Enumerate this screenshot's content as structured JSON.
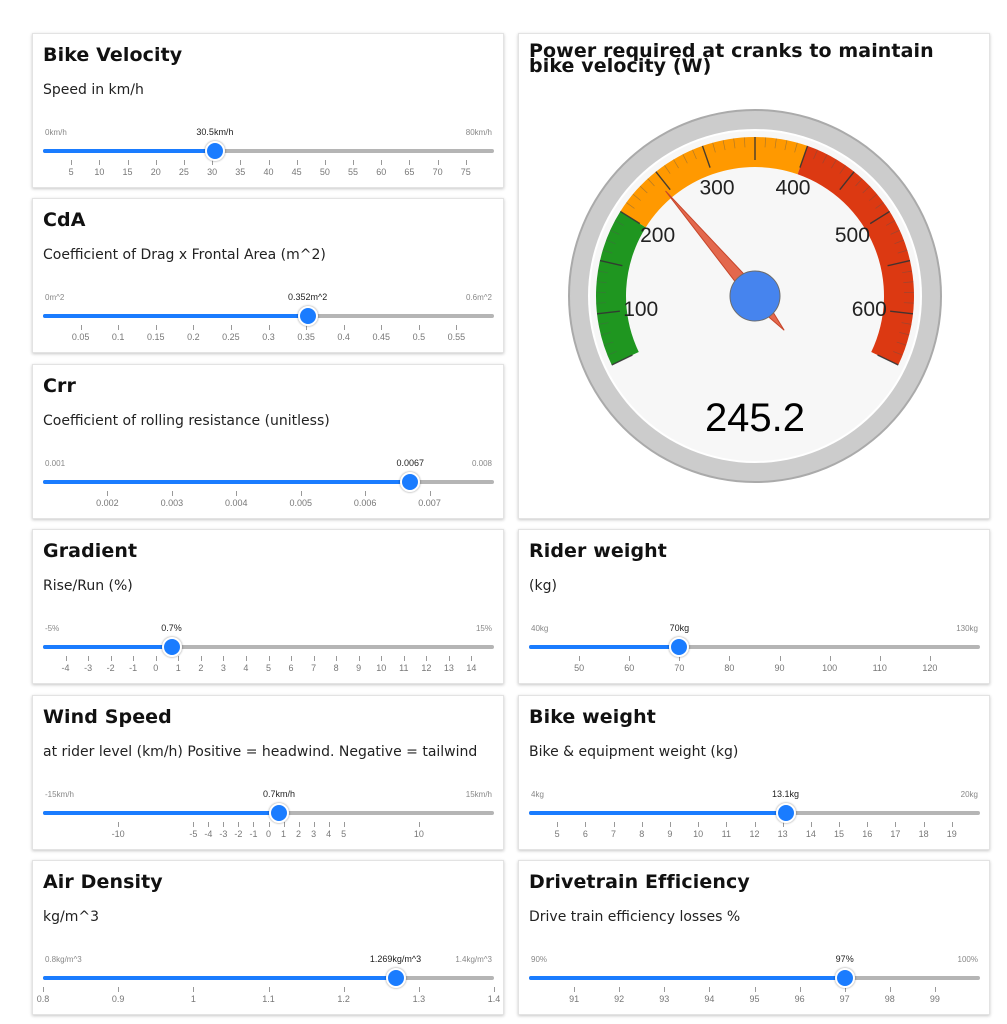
{
  "velocity": {
    "title": "Bike Velocity",
    "desc": "Speed in km/h",
    "min_label": "0km/h",
    "max_label": "80km/h",
    "value_label": "30.5km/h",
    "min": 0,
    "max": 80,
    "value": 30.5,
    "ticks": [
      {
        "v": 5,
        "l": "5"
      },
      {
        "v": 10,
        "l": "10"
      },
      {
        "v": 15,
        "l": "15"
      },
      {
        "v": 20,
        "l": "20"
      },
      {
        "v": 25,
        "l": "25"
      },
      {
        "v": 30,
        "l": "30"
      },
      {
        "v": 35,
        "l": "35"
      },
      {
        "v": 40,
        "l": "40"
      },
      {
        "v": 45,
        "l": "45"
      },
      {
        "v": 50,
        "l": "50"
      },
      {
        "v": 55,
        "l": "55"
      },
      {
        "v": 60,
        "l": "60"
      },
      {
        "v": 65,
        "l": "65"
      },
      {
        "v": 70,
        "l": "70"
      },
      {
        "v": 75,
        "l": "75"
      }
    ]
  },
  "cda": {
    "title": "CdA",
    "desc": "Coefficient of Drag x Frontal Area (m^2)",
    "min_label": "0m^2",
    "max_label": "0.6m^2",
    "value_label": "0.352m^2",
    "min": 0,
    "max": 0.6,
    "value": 0.352,
    "ticks": [
      {
        "v": 0.05,
        "l": "0.05"
      },
      {
        "v": 0.1,
        "l": "0.1"
      },
      {
        "v": 0.15,
        "l": "0.15"
      },
      {
        "v": 0.2,
        "l": "0.2"
      },
      {
        "v": 0.25,
        "l": "0.25"
      },
      {
        "v": 0.3,
        "l": "0.3"
      },
      {
        "v": 0.35,
        "l": "0.35"
      },
      {
        "v": 0.4,
        "l": "0.4"
      },
      {
        "v": 0.45,
        "l": "0.45"
      },
      {
        "v": 0.5,
        "l": "0.5"
      },
      {
        "v": 0.55,
        "l": "0.55"
      }
    ]
  },
  "crr": {
    "title": "Crr",
    "desc": "Coefficient of rolling resistance (unitless)",
    "min_label": "0.001",
    "max_label": "0.008",
    "value_label": "0.0067",
    "min": 0.001,
    "max": 0.008,
    "value": 0.0067,
    "ticks": [
      {
        "v": 0.002,
        "l": "0.002"
      },
      {
        "v": 0.003,
        "l": "0.003"
      },
      {
        "v": 0.004,
        "l": "0.004"
      },
      {
        "v": 0.005,
        "l": "0.005"
      },
      {
        "v": 0.006,
        "l": "0.006"
      },
      {
        "v": 0.007,
        "l": "0.007"
      }
    ]
  },
  "gradient": {
    "title": "Gradient",
    "desc": "Rise/Run (%)",
    "min_label": "-5%",
    "max_label": "15%",
    "value_label": "0.7%",
    "min": -5,
    "max": 15,
    "value": 0.7,
    "ticks": [
      {
        "v": -4,
        "l": "-4"
      },
      {
        "v": -3,
        "l": "-3"
      },
      {
        "v": -2,
        "l": "-2"
      },
      {
        "v": -1,
        "l": "-1"
      },
      {
        "v": 0,
        "l": "0"
      },
      {
        "v": 1,
        "l": "1"
      },
      {
        "v": 2,
        "l": "2"
      },
      {
        "v": 3,
        "l": "3"
      },
      {
        "v": 4,
        "l": "4"
      },
      {
        "v": 5,
        "l": "5"
      },
      {
        "v": 6,
        "l": "6"
      },
      {
        "v": 7,
        "l": "7"
      },
      {
        "v": 8,
        "l": "8"
      },
      {
        "v": 9,
        "l": "9"
      },
      {
        "v": 10,
        "l": "10"
      },
      {
        "v": 11,
        "l": "11"
      },
      {
        "v": 12,
        "l": "12"
      },
      {
        "v": 13,
        "l": "13"
      },
      {
        "v": 14,
        "l": "14"
      }
    ]
  },
  "wind": {
    "title": "Wind Speed",
    "desc": "at rider level (km/h) Positive = headwind. Negative = tailwind",
    "min_label": "-15km/h",
    "max_label": "15km/h",
    "value_label": "0.7km/h",
    "min": -15,
    "max": 15,
    "value": 0.7,
    "ticks": [
      {
        "v": -10,
        "l": "-10"
      },
      {
        "v": -5,
        "l": "-5"
      },
      {
        "v": -4,
        "l": "-4"
      },
      {
        "v": -3,
        "l": "-3"
      },
      {
        "v": -2,
        "l": "-2"
      },
      {
        "v": -1,
        "l": "-1"
      },
      {
        "v": 0,
        "l": "0"
      },
      {
        "v": 1,
        "l": "1"
      },
      {
        "v": 2,
        "l": "2"
      },
      {
        "v": 3,
        "l": "3"
      },
      {
        "v": 4,
        "l": "4"
      },
      {
        "v": 5,
        "l": "5"
      },
      {
        "v": 10,
        "l": "10"
      }
    ]
  },
  "air": {
    "title": "Air Density",
    "desc": "kg/m^3",
    "min_label": "0.8kg/m^3",
    "max_label": "1.4kg/m^3",
    "value_label": "1.269kg/m^3",
    "min": 0.8,
    "max": 1.4,
    "value": 1.269,
    "ticks": [
      {
        "v": 0.8,
        "l": "0.8"
      },
      {
        "v": 0.9,
        "l": "0.9"
      },
      {
        "v": 1.0,
        "l": "1"
      },
      {
        "v": 1.1,
        "l": "1.1"
      },
      {
        "v": 1.2,
        "l": "1.2"
      },
      {
        "v": 1.3,
        "l": "1.3"
      },
      {
        "v": 1.4,
        "l": "1.4"
      }
    ]
  },
  "rider": {
    "title": "Rider weight",
    "desc": "(kg)",
    "min_label": "40kg",
    "max_label": "130kg",
    "value_label": "70kg",
    "min": 40,
    "max": 130,
    "value": 70,
    "ticks": [
      {
        "v": 50,
        "l": "50"
      },
      {
        "v": 60,
        "l": "60"
      },
      {
        "v": 70,
        "l": "70"
      },
      {
        "v": 80,
        "l": "80"
      },
      {
        "v": 90,
        "l": "90"
      },
      {
        "v": 100,
        "l": "100"
      },
      {
        "v": 110,
        "l": "110"
      },
      {
        "v": 120,
        "l": "120"
      }
    ]
  },
  "bike": {
    "title": "Bike weight",
    "desc": "Bike & equipment weight (kg)",
    "min_label": "4kg",
    "max_label": "20kg",
    "value_label": "13.1kg",
    "min": 4,
    "max": 20,
    "value": 13.1,
    "ticks": [
      {
        "v": 5,
        "l": "5"
      },
      {
        "v": 6,
        "l": "6"
      },
      {
        "v": 7,
        "l": "7"
      },
      {
        "v": 8,
        "l": "8"
      },
      {
        "v": 9,
        "l": "9"
      },
      {
        "v": 10,
        "l": "10"
      },
      {
        "v": 11,
        "l": "11"
      },
      {
        "v": 12,
        "l": "12"
      },
      {
        "v": 13,
        "l": "13"
      },
      {
        "v": 14,
        "l": "14"
      },
      {
        "v": 15,
        "l": "15"
      },
      {
        "v": 16,
        "l": "16"
      },
      {
        "v": 17,
        "l": "17"
      },
      {
        "v": 18,
        "l": "18"
      },
      {
        "v": 19,
        "l": "19"
      }
    ]
  },
  "drive": {
    "title": "Drivetrain Efficiency",
    "desc": "Drive train efficiency losses %",
    "min_label": "90%",
    "max_label": "100%",
    "value_label": "97%",
    "min": 90,
    "max": 100,
    "value": 97,
    "ticks": [
      {
        "v": 91,
        "l": "91"
      },
      {
        "v": 92,
        "l": "92"
      },
      {
        "v": 93,
        "l": "93"
      },
      {
        "v": 94,
        "l": "94"
      },
      {
        "v": 95,
        "l": "95"
      },
      {
        "v": 96,
        "l": "96"
      },
      {
        "v": 97,
        "l": "97"
      },
      {
        "v": 98,
        "l": "98"
      },
      {
        "v": 99,
        "l": "99"
      }
    ]
  },
  "gauge": {
    "title": "Power required at cranks to maintain bike velocity (W)",
    "value": 245.2,
    "value_label": "245.2",
    "min": 0,
    "max": 700,
    "labels": [
      {
        "v": 100,
        "l": "100"
      },
      {
        "v": 200,
        "l": "200"
      },
      {
        "v": 300,
        "l": "300"
      },
      {
        "v": 400,
        "l": "400"
      },
      {
        "v": 500,
        "l": "500"
      },
      {
        "v": 600,
        "l": "600"
      }
    ],
    "bands": [
      {
        "from": 50,
        "to": 200,
        "color": "#1f9620"
      },
      {
        "from": 200,
        "to": 400,
        "color": "#ff9900"
      },
      {
        "from": 400,
        "to": 650,
        "color": "#dc3912"
      }
    ],
    "colors": {
      "needle": "#e0583a",
      "hub": "#4684ee",
      "rim": "#cccccc",
      "face": "#f7f7f7"
    }
  }
}
